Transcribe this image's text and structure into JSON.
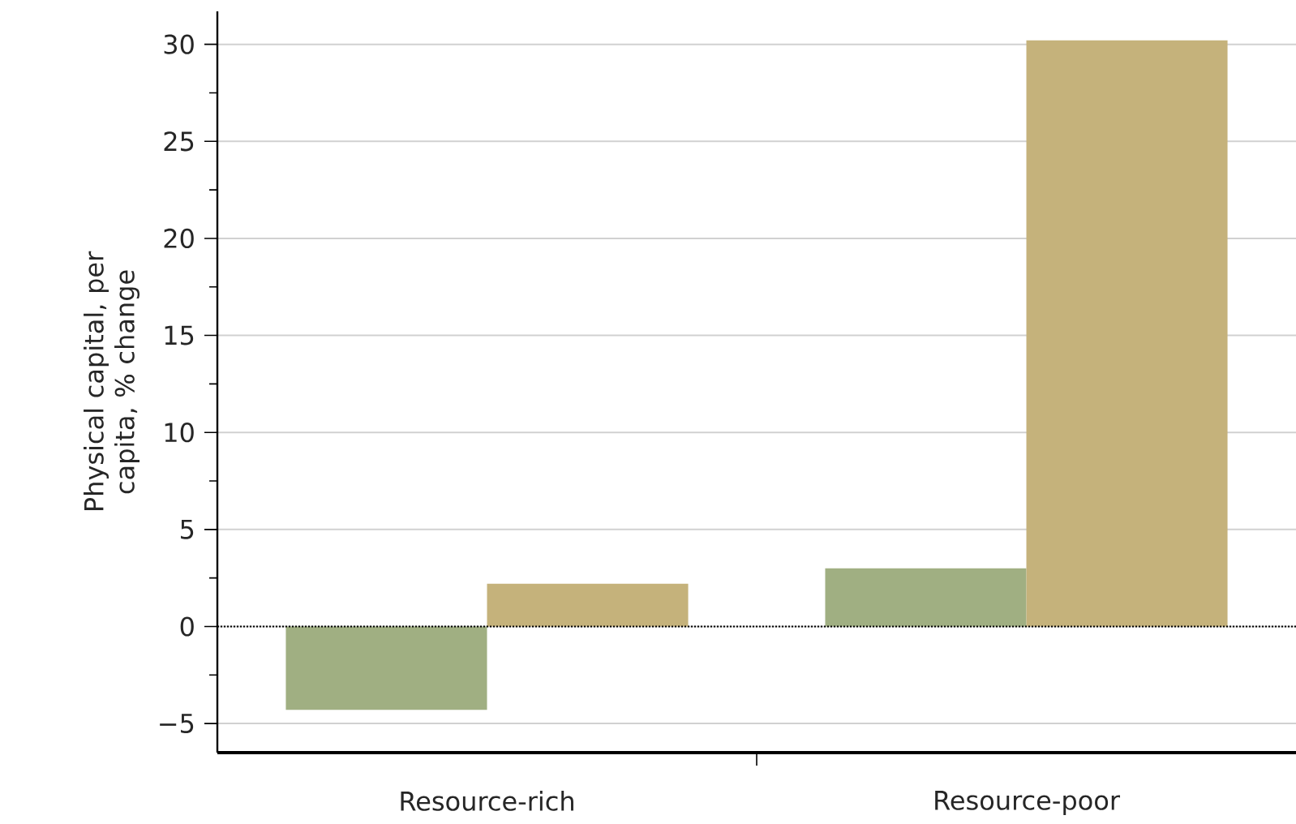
{
  "chart_data": {
    "type": "bar",
    "ylabel": "Physical capital, per capita, % change",
    "categories": [
      "Resource-rich",
      "Resource-poor"
    ],
    "series": [
      {
        "color": "#a0af82",
        "values": [
          -4.3,
          3.0
        ]
      },
      {
        "color": "#c5b27b",
        "values": [
          2.2,
          30.2
        ]
      }
    ],
    "ylim": [
      -6.5,
      31.7
    ],
    "yticks": [
      {
        "value": -5,
        "label": "−5"
      },
      0,
      5,
      10,
      15,
      20,
      25,
      30
    ],
    "grid": "y",
    "ref_lines": [
      {
        "axis": "y",
        "value": 0,
        "line_style": "dotted",
        "color": "#000000"
      }
    ]
  }
}
